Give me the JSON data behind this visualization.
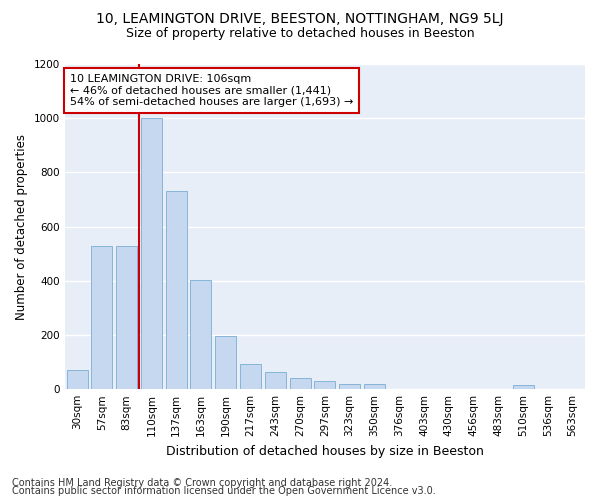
{
  "title1": "10, LEAMINGTON DRIVE, BEESTON, NOTTINGHAM, NG9 5LJ",
  "title2": "Size of property relative to detached houses in Beeston",
  "xlabel": "Distribution of detached houses by size in Beeston",
  "ylabel": "Number of detached properties",
  "categories": [
    "30sqm",
    "57sqm",
    "83sqm",
    "110sqm",
    "137sqm",
    "163sqm",
    "190sqm",
    "217sqm",
    "243sqm",
    "270sqm",
    "297sqm",
    "323sqm",
    "350sqm",
    "376sqm",
    "403sqm",
    "430sqm",
    "456sqm",
    "483sqm",
    "510sqm",
    "536sqm",
    "563sqm"
  ],
  "values": [
    70,
    527,
    527,
    1000,
    730,
    403,
    197,
    92,
    62,
    40,
    32,
    20,
    20,
    0,
    0,
    0,
    0,
    0,
    15,
    0,
    0
  ],
  "bar_color": "#c5d8f0",
  "bar_edgecolor": "#7aadd4",
  "vline_index": 3,
  "vline_color": "#cc0000",
  "annotation_line1": "10 LEAMINGTON DRIVE: 106sqm",
  "annotation_line2": "← 46% of detached houses are smaller (1,441)",
  "annotation_line3": "54% of semi-detached houses are larger (1,693) →",
  "annotation_box_facecolor": "#ffffff",
  "annotation_box_edgecolor": "#cc0000",
  "ylim": [
    0,
    1200
  ],
  "background_color": "#e8eef8",
  "grid_color": "#ffffff",
  "fig_facecolor": "#ffffff",
  "title1_fontsize": 10,
  "title2_fontsize": 9,
  "xlabel_fontsize": 9,
  "ylabel_fontsize": 8.5,
  "tick_fontsize": 7.5,
  "annot_fontsize": 8,
  "footer_fontsize": 7,
  "footer1": "Contains HM Land Registry data © Crown copyright and database right 2024.",
  "footer2": "Contains public sector information licensed under the Open Government Licence v3.0."
}
